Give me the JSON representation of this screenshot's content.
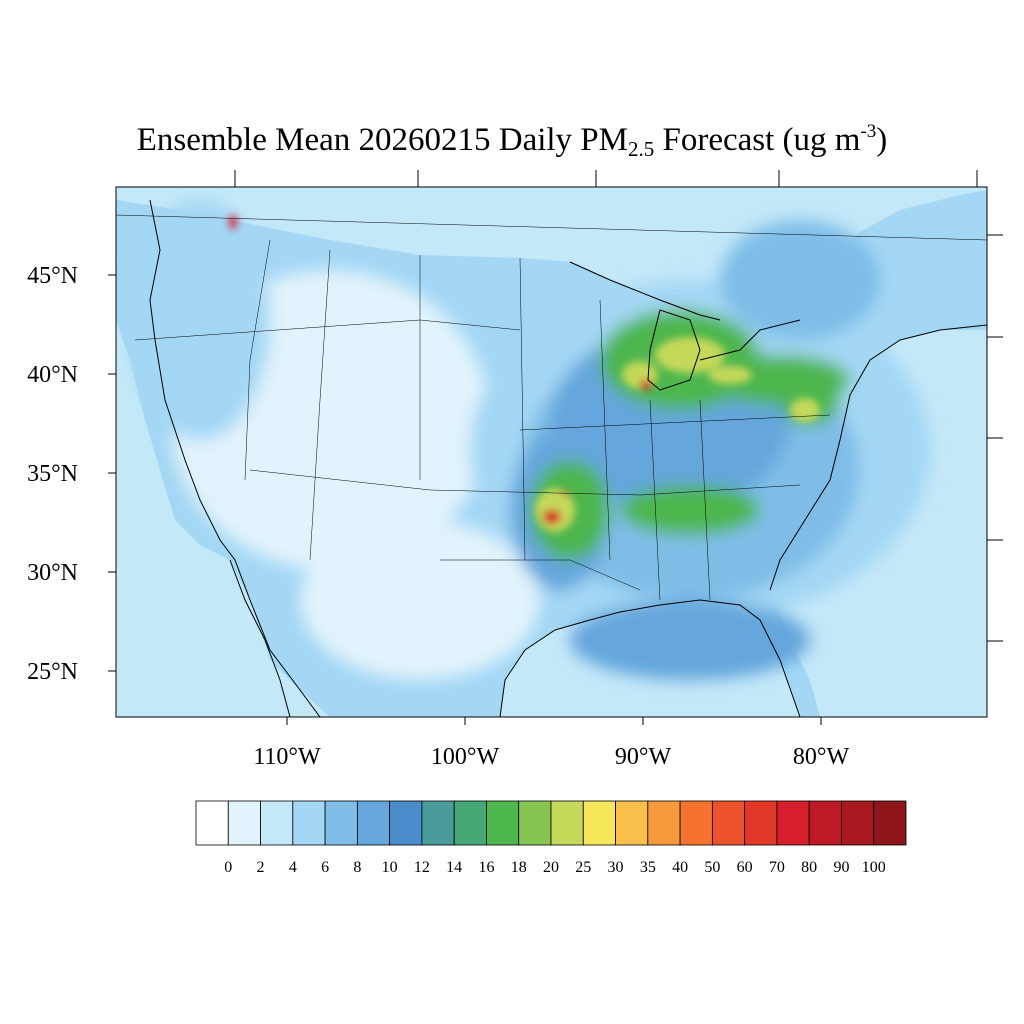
{
  "title": {
    "prefix": "Ensemble Mean 20260215 Daily PM",
    "subscript": "2.5",
    "middle": " Forecast (ug m",
    "superscript": "-3",
    "suffix": ")"
  },
  "map": {
    "name": "PM2.5 forecast map",
    "lat_labels": [
      {
        "label": "45°N",
        "value": 45
      },
      {
        "label": "40°N",
        "value": 40
      },
      {
        "label": "35°N",
        "value": 35
      },
      {
        "label": "30°N",
        "value": 30
      },
      {
        "label": "25°N",
        "value": 25
      }
    ],
    "lon_labels": [
      {
        "label": "110°W",
        "value": -110
      },
      {
        "label": "100°W",
        "value": -100
      },
      {
        "label": "90°W",
        "value": -90
      },
      {
        "label": "80°W",
        "value": -80
      }
    ]
  },
  "colorbar": {
    "labels": [
      "0",
      "2",
      "4",
      "6",
      "8",
      "10",
      "12",
      "14",
      "16",
      "18",
      "20",
      "25",
      "30",
      "35",
      "40",
      "50",
      "60",
      "70",
      "80",
      "90",
      "100"
    ],
    "colors": [
      "#ffffff",
      "#e1f3fc",
      "#c3e8f8",
      "#a3d7f4",
      "#7fbde7",
      "#65a6dc",
      "#4a8dcb",
      "#4a9b9b",
      "#46a777",
      "#4db64d",
      "#86c552",
      "#c5d85a",
      "#f6e75a",
      "#f9bf4a",
      "#f89a3c",
      "#f5722f",
      "#ec522b",
      "#e23828",
      "#d61e2c",
      "#be1a25",
      "#a8181e",
      "#8e1519"
    ]
  },
  "map_colors": {
    "ocean": "#c3e8f8",
    "low": "#e1f3fc",
    "moderate": "#a3d7f4",
    "elevated": "#7fbde7",
    "high": "#65a6dc",
    "hotspot_green": "#4db64d",
    "hotspot_yellow": "#c5d85a",
    "hotspot_red": "#d61e2c",
    "coast": "#000000"
  }
}
